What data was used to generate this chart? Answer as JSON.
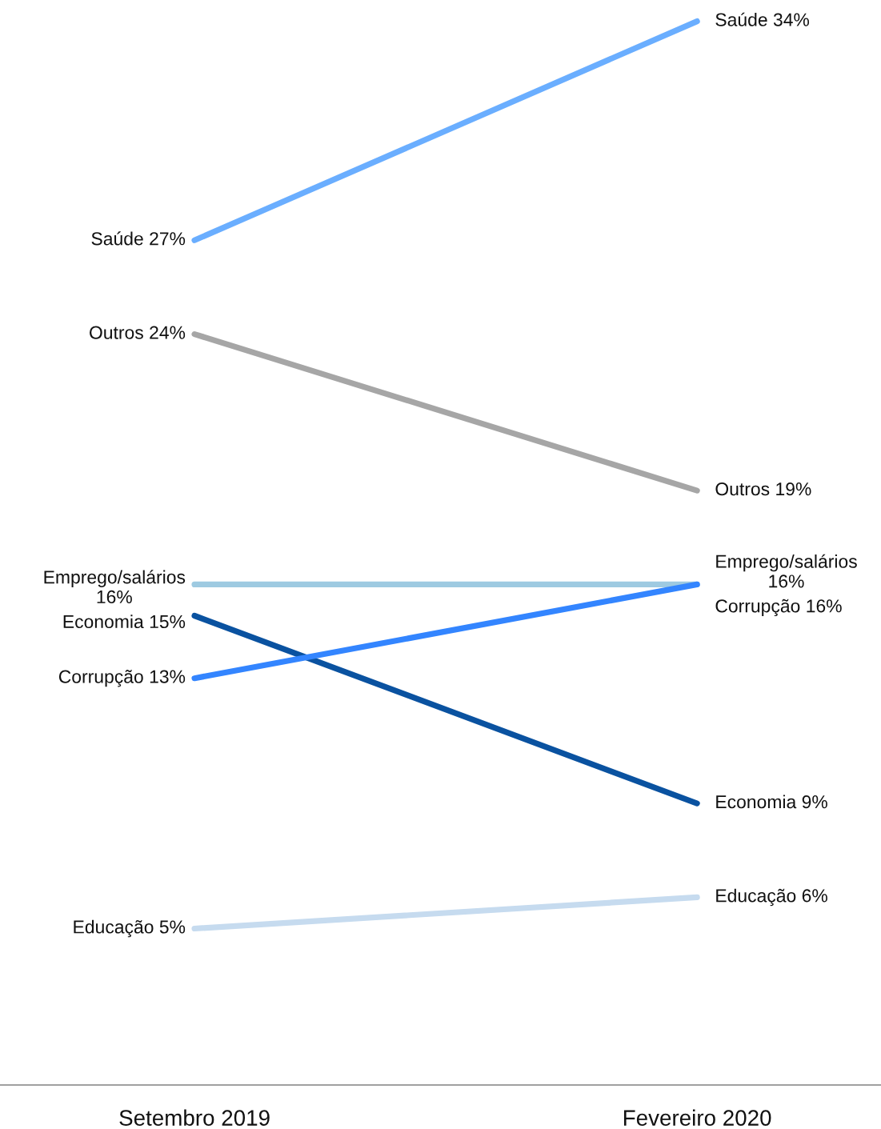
{
  "chart_data": {
    "type": "line",
    "categories": [
      "Setembro 2019",
      "Fevereiro 2020"
    ],
    "series": [
      {
        "color": "#6aaeff",
        "values": [
          27,
          34
        ],
        "value_labels": [
          "Saúde 27%",
          "Saúde 34%"
        ]
      },
      {
        "color": "#a6a6a6",
        "values": [
          24,
          19
        ],
        "value_labels": [
          "Outros 24%",
          "Outros 19%"
        ]
      },
      {
        "color": "#9ecae1",
        "values": [
          16,
          16
        ],
        "value_labels": [
          "Emprego/salários\n16%",
          "Emprego/salários\n16%"
        ]
      },
      {
        "color": "#0a52a0",
        "values": [
          15,
          9
        ],
        "value_labels": [
          "Economia 15%",
          "Economia 9%"
        ]
      },
      {
        "color": "#3385ff",
        "values": [
          13,
          16
        ],
        "value_labels": [
          "Corrupção 13%",
          "Corrupção 16%"
        ]
      },
      {
        "color": "#c6dbef",
        "values": [
          5,
          6
        ],
        "value_labels": [
          "Educação 5%",
          "Educação 6%"
        ]
      }
    ]
  }
}
